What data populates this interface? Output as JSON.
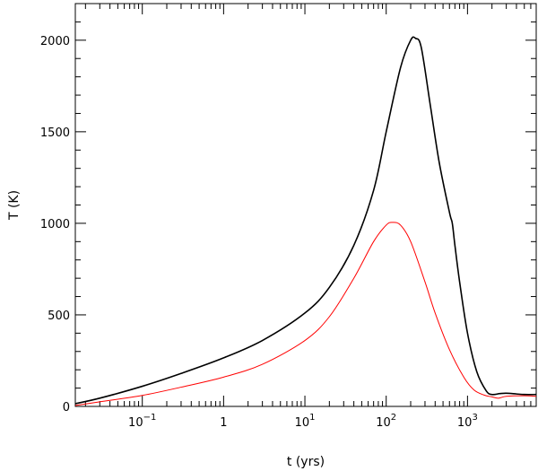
{
  "chart_data": {
    "type": "line",
    "title": "",
    "xlabel": "t (yrs)",
    "ylabel": "T (K)",
    "x_scale": "log",
    "xlim": [
      0.015,
      7000
    ],
    "ylim": [
      0,
      2200
    ],
    "grid": false,
    "x_major_ticks": [
      {
        "value": 0.1,
        "base": "10",
        "exp": "−1"
      },
      {
        "value": 1,
        "text": "1"
      },
      {
        "value": 10,
        "base": "10",
        "exp": "1"
      },
      {
        "value": 100,
        "base": "10",
        "exp": "2"
      },
      {
        "value": 1000,
        "base": "10",
        "exp": "3"
      }
    ],
    "y_major_ticks": [
      0,
      500,
      1000,
      1500,
      2000
    ],
    "y_minor_step": 100,
    "series": [
      {
        "color": "#000000",
        "x": [
          0.015,
          0.03,
          0.1,
          0.3,
          1,
          3,
          10,
          20,
          40,
          70,
          100,
          150,
          200,
          230,
          270,
          350,
          450,
          600,
          650,
          700,
          800,
          1000,
          1300,
          1700,
          2000,
          2500,
          3000,
          4000,
          5000,
          7000
        ],
        "y": [
          15,
          45,
          110,
          180,
          265,
          360,
          510,
          650,
          880,
          1180,
          1500,
          1850,
          2000,
          2010,
          1960,
          1640,
          1330,
          1060,
          1000,
          880,
          680,
          400,
          190,
          85,
          65,
          70,
          72,
          68,
          65,
          65
        ]
      },
      {
        "color": "#ff0000",
        "x": [
          0.015,
          0.03,
          0.1,
          0.3,
          1,
          3,
          10,
          20,
          40,
          70,
          100,
          120,
          150,
          200,
          300,
          400,
          600,
          900,
          1200,
          1600,
          2000,
          2400,
          3000,
          5000,
          7000
        ],
        "y": [
          5,
          25,
          60,
          105,
          160,
          230,
          360,
          490,
          700,
          900,
          990,
          1005,
          990,
          900,
          680,
          510,
          310,
          160,
          90,
          62,
          52,
          45,
          55,
          58,
          55
        ]
      }
    ]
  }
}
